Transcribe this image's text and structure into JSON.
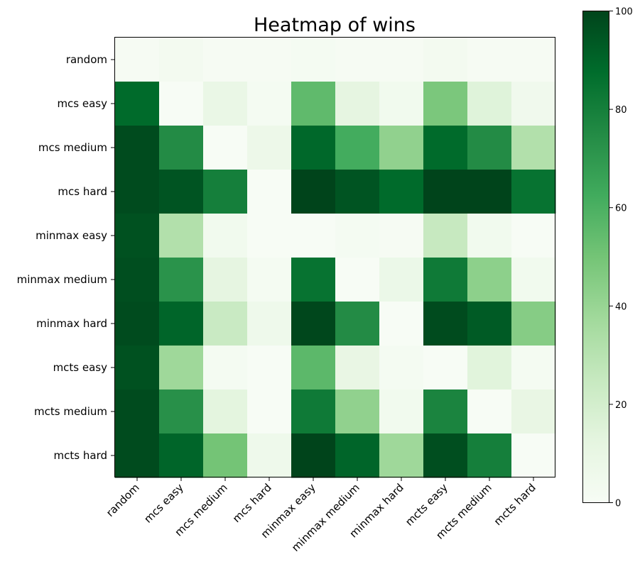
{
  "chart_data": {
    "type": "heatmap",
    "title": "Heatmap of wins",
    "rows": [
      "random",
      "mcs easy",
      "mcs medium",
      "mcs hard",
      "minmax easy",
      "minmax medium",
      "minmax hard",
      "mcts easy",
      "mcts medium",
      "mcts hard"
    ],
    "cols": [
      "random",
      "mcs easy",
      "mcs medium",
      "mcs hard",
      "minmax easy",
      "minmax medium",
      "minmax hard",
      "mcts easy",
      "mcts medium",
      "mcts hard"
    ],
    "values": [
      [
        1,
        3,
        1,
        1,
        2,
        1,
        1,
        3,
        1,
        1
      ],
      [
        88,
        0,
        9,
        2,
        55,
        12,
        4,
        48,
        15,
        5
      ],
      [
        98,
        75,
        0,
        7,
        89,
        62,
        42,
        88,
        75,
        32
      ],
      [
        98,
        95,
        80,
        0,
        100,
        95,
        88,
        100,
        100,
        85
      ],
      [
        96,
        32,
        4,
        0,
        0,
        2,
        1,
        25,
        4,
        0
      ],
      [
        97,
        72,
        12,
        2,
        85,
        0,
        8,
        82,
        43,
        4
      ],
      [
        98,
        90,
        24,
        6,
        99,
        75,
        0,
        98,
        93,
        45
      ],
      [
        96,
        38,
        2,
        0,
        56,
        10,
        2,
        0,
        14,
        2
      ],
      [
        98,
        73,
        13,
        0,
        82,
        42,
        4,
        78,
        0,
        10
      ],
      [
        98,
        90,
        50,
        6,
        100,
        90,
        38,
        97,
        80,
        0
      ]
    ],
    "vmin": 0,
    "vmax": 100,
    "colormap": "Greens",
    "colorbar_ticks": [
      0,
      20,
      40,
      60,
      80,
      100
    ],
    "colorbar_tick_labels": [
      "0",
      "20",
      "40",
      "60",
      "80",
      "100"
    ]
  }
}
